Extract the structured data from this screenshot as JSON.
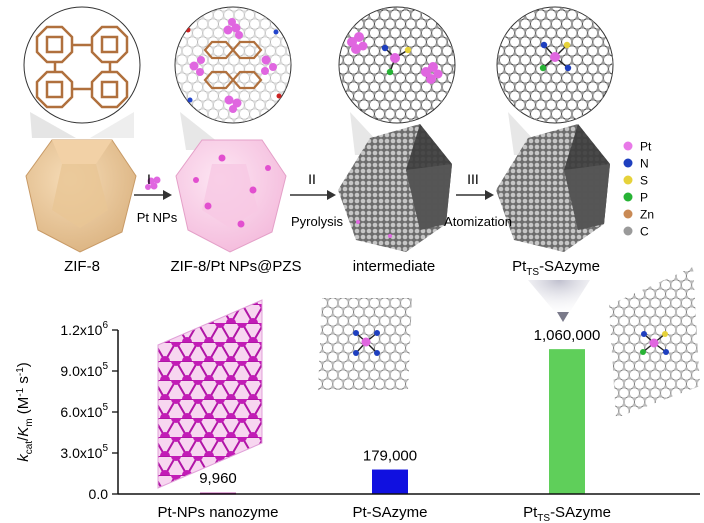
{
  "steps": {
    "zif8": "ZIF-8",
    "step1_numeral": "I",
    "step1_reagent": "Pt NPs",
    "zif8_pzs": "ZIF-8/Pt NPs@PZS",
    "step2_numeral": "II",
    "step2_process": "Pyrolysis",
    "intermediate": "intermediate",
    "step3_numeral": "III",
    "step3_process": "Atomization",
    "product_main": "Pt",
    "product_sub": "TS",
    "product_suffix": "-SAzyme"
  },
  "legend": [
    {
      "label": "Pt",
      "color": "#e879e8"
    },
    {
      "label": "N",
      "color": "#1e3fbf"
    },
    {
      "label": "S",
      "color": "#e6d23a"
    },
    {
      "label": "P",
      "color": "#27b335"
    },
    {
      "label": "Zn",
      "color": "#c98a55"
    },
    {
      "label": "C",
      "color": "#9a9a9a"
    }
  ],
  "chart_data": {
    "type": "bar",
    "categories": [
      "Pt-NPs nanozyme",
      "Pt-SAzyme",
      "Pt_TS-SAzyme"
    ],
    "values": [
      9960,
      179000,
      1060000
    ],
    "value_labels": [
      "9,960",
      "179,000",
      "1,060,000"
    ],
    "colors": [
      "#b0209a",
      "#1010e0",
      "#5fcf5a"
    ],
    "ylim": [
      0,
      1200000
    ],
    "yticks": [
      {
        "value": 0,
        "label": "0.0"
      },
      {
        "value": 300000,
        "label": "3.0x10",
        "exp": "5"
      },
      {
        "value": 600000,
        "label": "6.0x10",
        "exp": "5"
      },
      {
        "value": 900000,
        "label": "9.0x10",
        "exp": "5"
      },
      {
        "value": 1200000,
        "label": "1.2x10",
        "exp": "6"
      }
    ],
    "ylabel": {
      "k": "k",
      "cat": "cat",
      "slash": "/",
      "K": "K",
      "m": "m",
      "units": " (M",
      "exp1": "-1",
      "s": " s",
      "exp2": "-1",
      "close": ")"
    },
    "category_labels": [
      {
        "text": "Pt-NPs nanozyme"
      },
      {
        "text": "Pt-SAzyme"
      },
      {
        "main": "Pt",
        "sub": "TS",
        "suffix": "-SAzyme"
      }
    ]
  }
}
